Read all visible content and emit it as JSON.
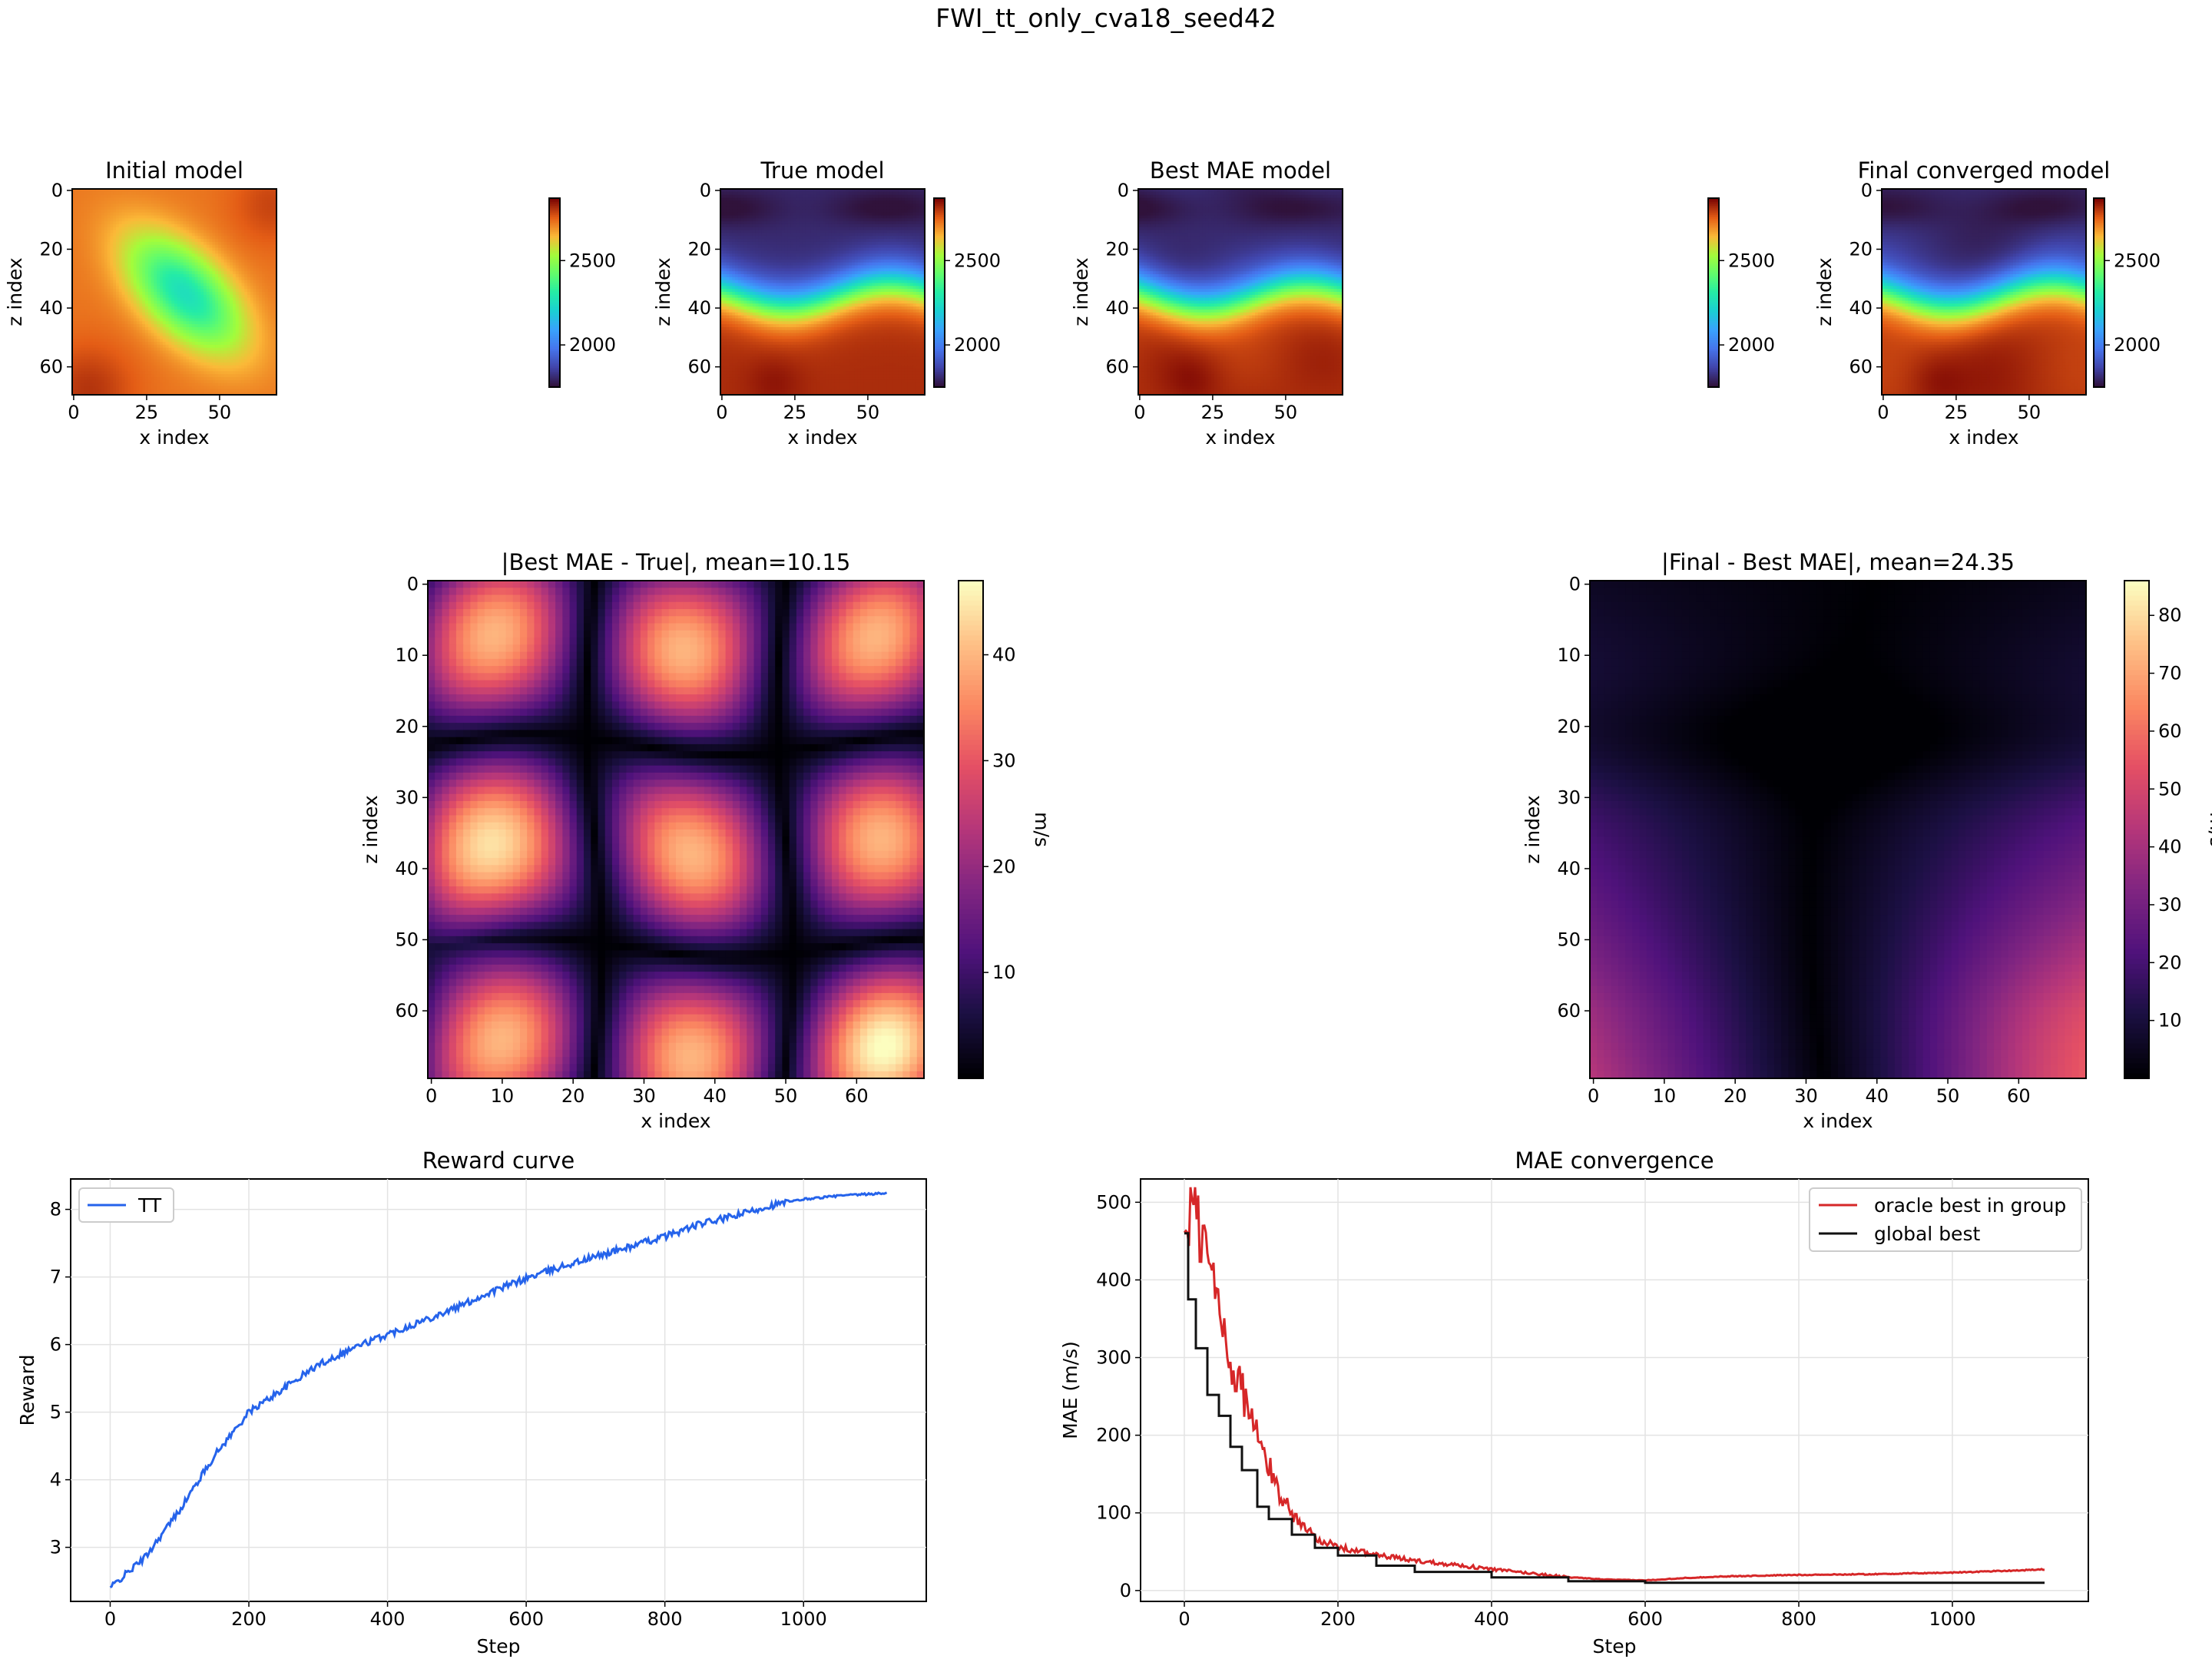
{
  "suptitle": "FWI_tt_only_cva18_seed42",
  "colors": {
    "velocity_colormap": "turbo",
    "error_colormap": "magma",
    "tt_line": "#2563eb",
    "oracle_line": "#d62728",
    "global_line": "#111111",
    "grid": "#e0e0e0"
  },
  "velocity_panels": [
    {
      "id": "initial",
      "title": "Initial model",
      "xlabel": "x index",
      "ylabel": "z index",
      "xticks": [
        "0",
        "25",
        "50"
      ],
      "yticks": [
        "0",
        "20",
        "40",
        "60"
      ],
      "colorbar_ticks": [
        "2500",
        "2000"
      ]
    },
    {
      "id": "true",
      "title": "True model",
      "xlabel": "x index",
      "ylabel": "z index",
      "xticks": [
        "0",
        "25",
        "50"
      ],
      "yticks": [
        "0",
        "20",
        "40",
        "60"
      ],
      "colorbar_ticks": [
        "2500",
        "2000"
      ]
    },
    {
      "id": "best",
      "title": "Best MAE model",
      "xlabel": "x index",
      "ylabel": "z index",
      "xticks": [
        "0",
        "25",
        "50"
      ],
      "yticks": [
        "0",
        "20",
        "40",
        "60"
      ],
      "colorbar_ticks": [
        "2500",
        "2000"
      ]
    },
    {
      "id": "final",
      "title": "Final converged model",
      "xlabel": "x index",
      "ylabel": "z index",
      "xticks": [
        "0",
        "25",
        "50"
      ],
      "yticks": [
        "0",
        "20",
        "40",
        "60"
      ],
      "colorbar_ticks": [
        "2500",
        "2000"
      ]
    }
  ],
  "error_panels": [
    {
      "id": "err1",
      "title": "|Best MAE - True|, mean=10.15",
      "xlabel": "x index",
      "ylabel": "z index",
      "xticks": [
        "0",
        "10",
        "20",
        "30",
        "40",
        "50",
        "60"
      ],
      "yticks": [
        "0",
        "10",
        "20",
        "30",
        "40",
        "50",
        "60"
      ],
      "colorbar_label": "m/s",
      "colorbar_ticks": [
        "40",
        "30",
        "20",
        "10"
      ]
    },
    {
      "id": "err2",
      "title": "|Final - Best MAE|, mean=24.35",
      "xlabel": "x index",
      "ylabel": "z index",
      "xticks": [
        "0",
        "10",
        "20",
        "30",
        "40",
        "50",
        "60"
      ],
      "yticks": [
        "0",
        "10",
        "20",
        "30",
        "40",
        "50",
        "60"
      ],
      "colorbar_label": "m/s",
      "colorbar_ticks": [
        "80",
        "70",
        "60",
        "50",
        "40",
        "30",
        "20",
        "10"
      ]
    }
  ],
  "chart_data": [
    {
      "type": "heatmap",
      "title": "Initial model",
      "xlabel": "x index",
      "ylabel": "z index",
      "shape": [
        70,
        70
      ],
      "colormap": "turbo",
      "color_range": [
        1800,
        2900
      ],
      "description_values": {
        "background_velocity": 2750,
        "anomaly_center": [
          38,
          35
        ],
        "anomaly_velocity": 2300
      }
    },
    {
      "type": "heatmap",
      "title": "True model",
      "xlabel": "x index",
      "ylabel": "z index",
      "shape": [
        70,
        70
      ],
      "colormap": "turbo",
      "color_range": [
        1800,
        2900
      ],
      "description_values": {
        "top_velocity": 1850,
        "bottom_velocity": 2850,
        "interface_depth_mean": 35
      }
    },
    {
      "type": "heatmap",
      "title": "Best MAE model",
      "xlabel": "x index",
      "ylabel": "z index",
      "shape": [
        70,
        70
      ],
      "colormap": "turbo",
      "color_range": [
        1800,
        2900
      ]
    },
    {
      "type": "heatmap",
      "title": "Final converged model",
      "xlabel": "x index",
      "ylabel": "z index",
      "shape": [
        70,
        70
      ],
      "colormap": "turbo",
      "color_range": [
        1800,
        2900
      ]
    },
    {
      "type": "heatmap",
      "title": "|Best MAE - True|, mean=10.15",
      "xlabel": "x index",
      "ylabel": "z index",
      "shape": [
        70,
        70
      ],
      "colormap": "magma",
      "color_range": [
        0,
        47
      ],
      "colorbar_label": "m/s"
    },
    {
      "type": "heatmap",
      "title": "|Final - Best MAE|, mean=24.35",
      "xlabel": "x index",
      "ylabel": "z index",
      "shape": [
        70,
        70
      ],
      "colormap": "magma",
      "color_range": [
        0,
        86
      ],
      "colorbar_label": "m/s"
    },
    {
      "type": "line",
      "title": "Reward curve",
      "xlabel": "Step",
      "ylabel": "Reward",
      "xlim": [
        -57,
        1177
      ],
      "ylim": [
        2.2,
        8.45
      ],
      "xticks": [
        0,
        200,
        400,
        600,
        800,
        1000
      ],
      "yticks": [
        3,
        4,
        5,
        6,
        7,
        8
      ],
      "grid": true,
      "legend": "upper-left",
      "series": [
        {
          "name": "TT",
          "x": [
            0,
            50,
            100,
            150,
            200,
            250,
            300,
            350,
            400,
            450,
            500,
            550,
            600,
            650,
            700,
            750,
            800,
            850,
            900,
            950,
            1000,
            1050,
            1120
          ],
          "y": [
            2.4,
            2.85,
            3.55,
            4.35,
            5.0,
            5.35,
            5.7,
            5.95,
            6.15,
            6.35,
            6.55,
            6.78,
            6.98,
            7.15,
            7.3,
            7.45,
            7.6,
            7.78,
            7.9,
            8.05,
            8.15,
            8.2,
            8.24
          ]
        }
      ]
    },
    {
      "type": "line",
      "title": "MAE convergence",
      "xlabel": "Step",
      "ylabel": "MAE (m/s)",
      "xlim": [
        -57,
        1177
      ],
      "ylim": [
        -14,
        530
      ],
      "xticks": [
        0,
        200,
        400,
        600,
        800,
        1000
      ],
      "yticks": [
        0,
        100,
        200,
        300,
        400,
        500
      ],
      "grid": true,
      "legend": "upper-right",
      "series": [
        {
          "name": "oracle best in group",
          "x": [
            0,
            10,
            25,
            40,
            60,
            80,
            100,
            125,
            150,
            175,
            200,
            250,
            300,
            350,
            400,
            450,
            500,
            550,
            600,
            650,
            700,
            800,
            900,
            1000,
            1120
          ],
          "y": [
            455,
            480,
            440,
            380,
            290,
            240,
            180,
            120,
            85,
            65,
            55,
            45,
            38,
            33,
            27,
            22,
            17,
            14,
            13,
            16,
            18,
            20,
            21,
            23,
            27
          ]
        },
        {
          "name": "global best",
          "x": [
            0,
            5,
            15,
            30,
            45,
            60,
            75,
            95,
            110,
            140,
            170,
            200,
            250,
            300,
            400,
            500,
            600,
            700,
            800,
            900,
            1000,
            1120
          ],
          "y": [
            460,
            375,
            312,
            252,
            225,
            185,
            155,
            108,
            92,
            72,
            55,
            45,
            32,
            24,
            17,
            12,
            10,
            10,
            10,
            10,
            10,
            10
          ]
        }
      ]
    }
  ],
  "reward_chart": {
    "title": "Reward curve",
    "xlabel": "Step",
    "ylabel": "Reward",
    "xticks": [
      "0",
      "200",
      "400",
      "600",
      "800",
      "1000"
    ],
    "yticks": [
      "3",
      "4",
      "5",
      "6",
      "7",
      "8"
    ],
    "legend": [
      "TT"
    ]
  },
  "mae_chart": {
    "title": "MAE convergence",
    "xlabel": "Step",
    "ylabel": "MAE (m/s)",
    "xticks": [
      "0",
      "200",
      "400",
      "600",
      "800",
      "1000"
    ],
    "yticks": [
      "0",
      "100",
      "200",
      "300",
      "400",
      "500"
    ],
    "legend": [
      "oracle best in group",
      "global best"
    ]
  }
}
